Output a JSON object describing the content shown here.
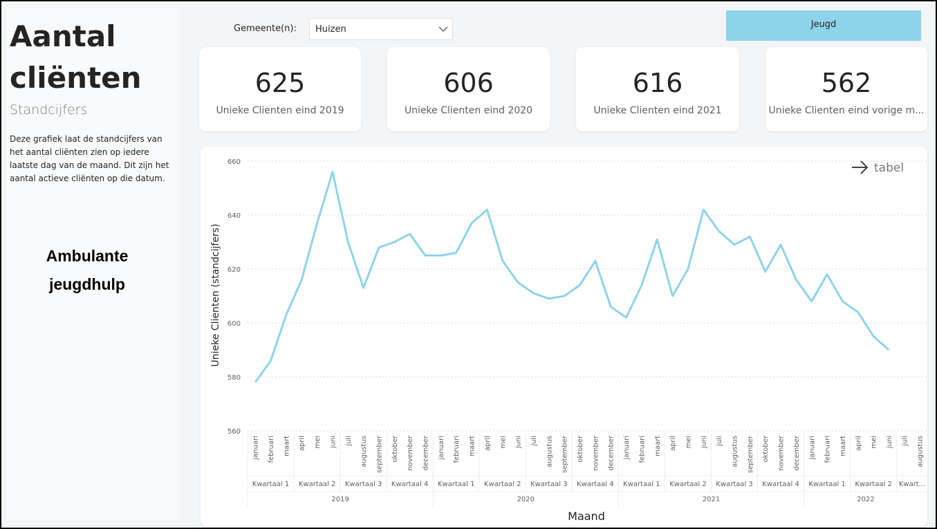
{
  "header": {
    "title_line1": "Aantal",
    "title_line2": "cliënten",
    "subtitle": "Standcijfers",
    "description": "Deze grafiek laat de standcijfers van het aantal cliënten zien op iedere laatste dag van de maand. Dit zijn het aantal actieve cliënten op die datum.",
    "section": "Ambulante jeugdhulp"
  },
  "filter": {
    "label": "Gemeente(n):",
    "value": "Huizen"
  },
  "button": {
    "label": "Jeugd"
  },
  "cards": [
    {
      "value": 625,
      "label": "Unieke Clienten eind 2019"
    },
    {
      "value": 606,
      "label": "Unieke Clienten eind 2020"
    },
    {
      "value": 616,
      "label": "Unieke Clienten eind 2021"
    },
    {
      "value": 562,
      "label": "Unieke Clienten eind vorige m..."
    }
  ],
  "table_link": "tabel",
  "chart_data": {
    "type": "line",
    "y_label": "Unieke Clienten (standcijfers)",
    "x_label": "Maand",
    "categories": [
      "januari",
      "februari",
      "maart",
      "april",
      "mei",
      "juni",
      "juli",
      "augustus",
      "september",
      "oktober",
      "november",
      "december",
      "januari",
      "februari",
      "maart",
      "april",
      "mei",
      "juni",
      "juli",
      "augustus",
      "september",
      "oktober",
      "november",
      "december",
      "januari",
      "februari",
      "maart",
      "april",
      "mei",
      "juni",
      "juli",
      "augustus",
      "september",
      "oktober",
      "november",
      "december",
      "januari",
      "februari",
      "maart",
      "april",
      "mei",
      "juni",
      "juli",
      "augustus"
    ],
    "quarters": [
      "Kwartaal 1",
      "Kwartaal 2",
      "Kwartaal 3",
      "Kwartaal 4",
      "Kwartaal 1",
      "Kwartaal 2",
      "Kwartaal 3",
      "Kwartaal 4",
      "Kwartaal 1",
      "Kwartaal 2",
      "Kwartaal 3",
      "Kwartaal 4",
      "Kwartaal 1",
      "Kwartaal 2",
      "Kwart..."
    ],
    "years": [
      "2019",
      "2020",
      "2021",
      "2022"
    ],
    "series": [
      {
        "name": "Unieke Clienten (standcijfers)",
        "color": "#8fd3e8",
        "values": [
          578,
          586,
          603,
          616,
          637,
          656,
          630,
          613,
          628,
          630,
          633,
          625,
          625,
          626,
          637,
          642,
          623,
          615,
          611,
          609,
          610,
          614,
          623,
          606,
          602,
          614,
          631,
          610,
          620,
          642,
          634,
          629,
          632,
          619,
          629,
          616,
          608,
          618,
          608,
          604,
          595,
          590,
          null,
          null
        ]
      }
    ],
    "ylim": [
      560,
      660
    ],
    "yticks": [
      560,
      580,
      600,
      620,
      640,
      660
    ],
    "grid": true
  }
}
